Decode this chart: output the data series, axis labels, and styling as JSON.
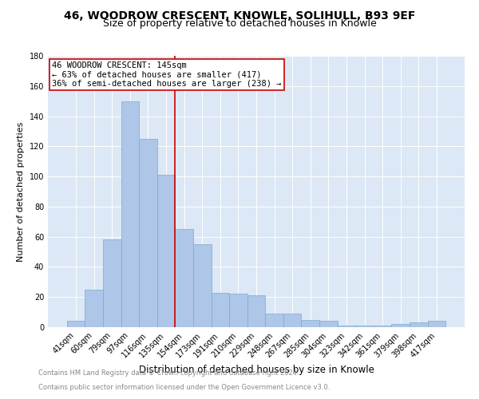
{
  "title1": "46, WOODROW CRESCENT, KNOWLE, SOLIHULL, B93 9EF",
  "title2": "Size of property relative to detached houses in Knowle",
  "xlabel": "Distribution of detached houses by size in Knowle",
  "ylabel": "Number of detached properties",
  "categories": [
    "41sqm",
    "60sqm",
    "79sqm",
    "97sqm",
    "116sqm",
    "135sqm",
    "154sqm",
    "173sqm",
    "191sqm",
    "210sqm",
    "229sqm",
    "248sqm",
    "267sqm",
    "285sqm",
    "304sqm",
    "323sqm",
    "342sqm",
    "361sqm",
    "379sqm",
    "398sqm",
    "417sqm"
  ],
  "values": [
    4,
    25,
    58,
    150,
    125,
    101,
    65,
    55,
    23,
    22,
    21,
    9,
    9,
    5,
    4,
    1,
    1,
    1,
    2,
    3,
    4
  ],
  "bar_color": "#aec6e8",
  "bar_edge_color": "#7aaad0",
  "vline_x": 5.5,
  "vline_color": "#cc0000",
  "annotation_text": "46 WOODROW CRESCENT: 145sqm\n← 63% of detached houses are smaller (417)\n36% of semi-detached houses are larger (238) →",
  "annotation_box_color": "#ffffff",
  "annotation_box_edge": "#cc0000",
  "ylim": [
    0,
    180
  ],
  "yticks": [
    0,
    20,
    40,
    60,
    80,
    100,
    120,
    140,
    160,
    180
  ],
  "footer1": "Contains HM Land Registry data © Crown copyright and database right 2024.",
  "footer2": "Contains public sector information licensed under the Open Government Licence v3.0.",
  "bg_color": "#dce8f5",
  "title1_fontsize": 10,
  "title2_fontsize": 9,
  "xlabel_fontsize": 8.5,
  "ylabel_fontsize": 8,
  "annotation_fontsize": 7.5,
  "tick_fontsize": 7,
  "footer_fontsize": 6,
  "footer_color": "#888888"
}
